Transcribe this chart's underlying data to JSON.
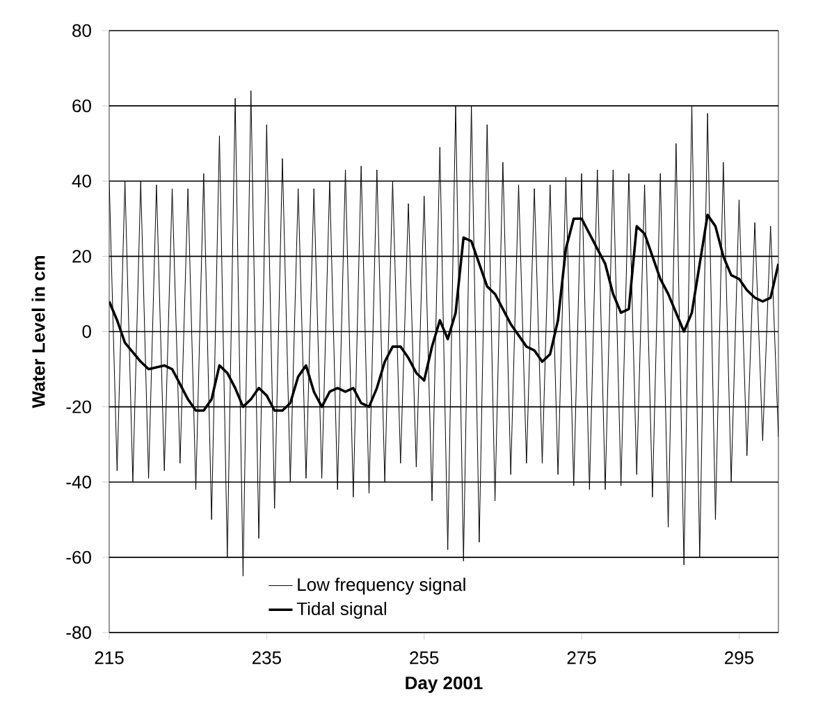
{
  "chart_data": {
    "type": "line",
    "xlabel": "Day 2001",
    "ylabel": "Water Level in cm",
    "xlim": [
      215,
      300
    ],
    "xticks": [
      215,
      235,
      255,
      275,
      295
    ],
    "ylim": [
      -80,
      80
    ],
    "yticks": [
      -80,
      -60,
      -40,
      -20,
      0,
      20,
      40,
      60,
      80
    ],
    "grid": "y",
    "legend": "bottom",
    "series": [
      {
        "name": "Low frequency signal",
        "color": "#000000",
        "x": [
          215,
          216,
          217,
          218,
          219,
          220,
          221,
          222,
          223,
          224,
          225,
          226,
          227,
          228,
          229,
          230,
          231,
          232,
          233,
          234,
          235,
          236,
          237,
          238,
          239,
          240,
          241,
          242,
          243,
          244,
          245,
          246,
          247,
          248,
          249,
          250,
          251,
          252,
          253,
          254,
          255,
          256,
          257,
          258,
          259,
          260,
          261,
          262,
          263,
          264,
          265,
          266,
          267,
          268,
          269,
          270,
          271,
          272,
          273,
          274,
          275,
          276,
          277,
          278,
          279,
          280,
          281,
          282,
          283,
          284,
          285,
          286,
          287,
          288,
          289,
          290,
          291,
          292,
          293,
          294,
          295,
          296,
          297,
          298,
          299,
          300
        ],
        "values": [
          40,
          -37,
          40,
          -40,
          40,
          -39,
          39,
          -37,
          38,
          -35,
          38,
          -42,
          42,
          -50,
          52,
          -60,
          62,
          -65,
          64,
          -55,
          55,
          -47,
          46,
          -40,
          38,
          -39,
          38,
          -39,
          40,
          -42,
          43,
          -44,
          44,
          -43,
          43,
          -40,
          40,
          -35,
          34,
          -36,
          36,
          -45,
          49,
          -58,
          60,
          -61,
          60,
          -56,
          55,
          -45,
          45,
          -38,
          39,
          -35,
          38,
          -35,
          39,
          -38,
          41,
          -41,
          42,
          -42,
          43,
          -42,
          43,
          -41,
          42,
          -38,
          39,
          -44,
          42,
          -52,
          50,
          -62,
          60,
          -60,
          58,
          -50,
          45,
          -40,
          35,
          -33,
          29,
          -29,
          28,
          -28
        ]
      },
      {
        "name": "Tidal signal",
        "color": "#000000",
        "x": [
          215,
          216,
          217,
          219,
          220,
          222,
          223,
          224,
          225,
          226,
          227,
          228,
          229,
          230,
          231,
          232,
          233,
          234,
          235,
          236,
          237,
          238,
          239,
          240,
          241,
          242,
          243,
          244,
          245,
          246,
          247,
          248,
          249,
          250,
          251,
          252,
          253,
          254,
          255,
          256,
          257,
          258,
          259,
          260,
          261,
          262,
          263,
          264,
          265,
          266,
          267,
          268,
          269,
          270,
          271,
          272,
          273,
          274,
          275,
          276,
          277,
          278,
          279,
          280,
          281,
          282,
          283,
          284,
          285,
          286,
          287,
          288,
          289,
          290,
          291,
          292,
          293,
          294,
          295,
          296,
          297,
          298,
          299,
          300
        ],
        "values": [
          8,
          3,
          -3,
          -8,
          -10,
          -9,
          -10,
          -14,
          -18,
          -21,
          -21,
          -18,
          -9,
          -11,
          -15,
          -20,
          -18,
          -15,
          -17,
          -21,
          -21,
          -19,
          -12,
          -9,
          -16,
          -20,
          -16,
          -15,
          -16,
          -15,
          -19,
          -20,
          -15,
          -8,
          -4,
          -4,
          -7,
          -11,
          -13,
          -4,
          3,
          -2,
          5,
          25,
          24,
          18,
          12,
          10,
          6,
          2,
          -1,
          -4,
          -5,
          -8,
          -6,
          3,
          22,
          30,
          30,
          26,
          22,
          18,
          10,
          5,
          6,
          28,
          26,
          20,
          14,
          10,
          5,
          0,
          5,
          18,
          31,
          28,
          20,
          15,
          14,
          11,
          9,
          8,
          9,
          18
        ]
      }
    ]
  }
}
